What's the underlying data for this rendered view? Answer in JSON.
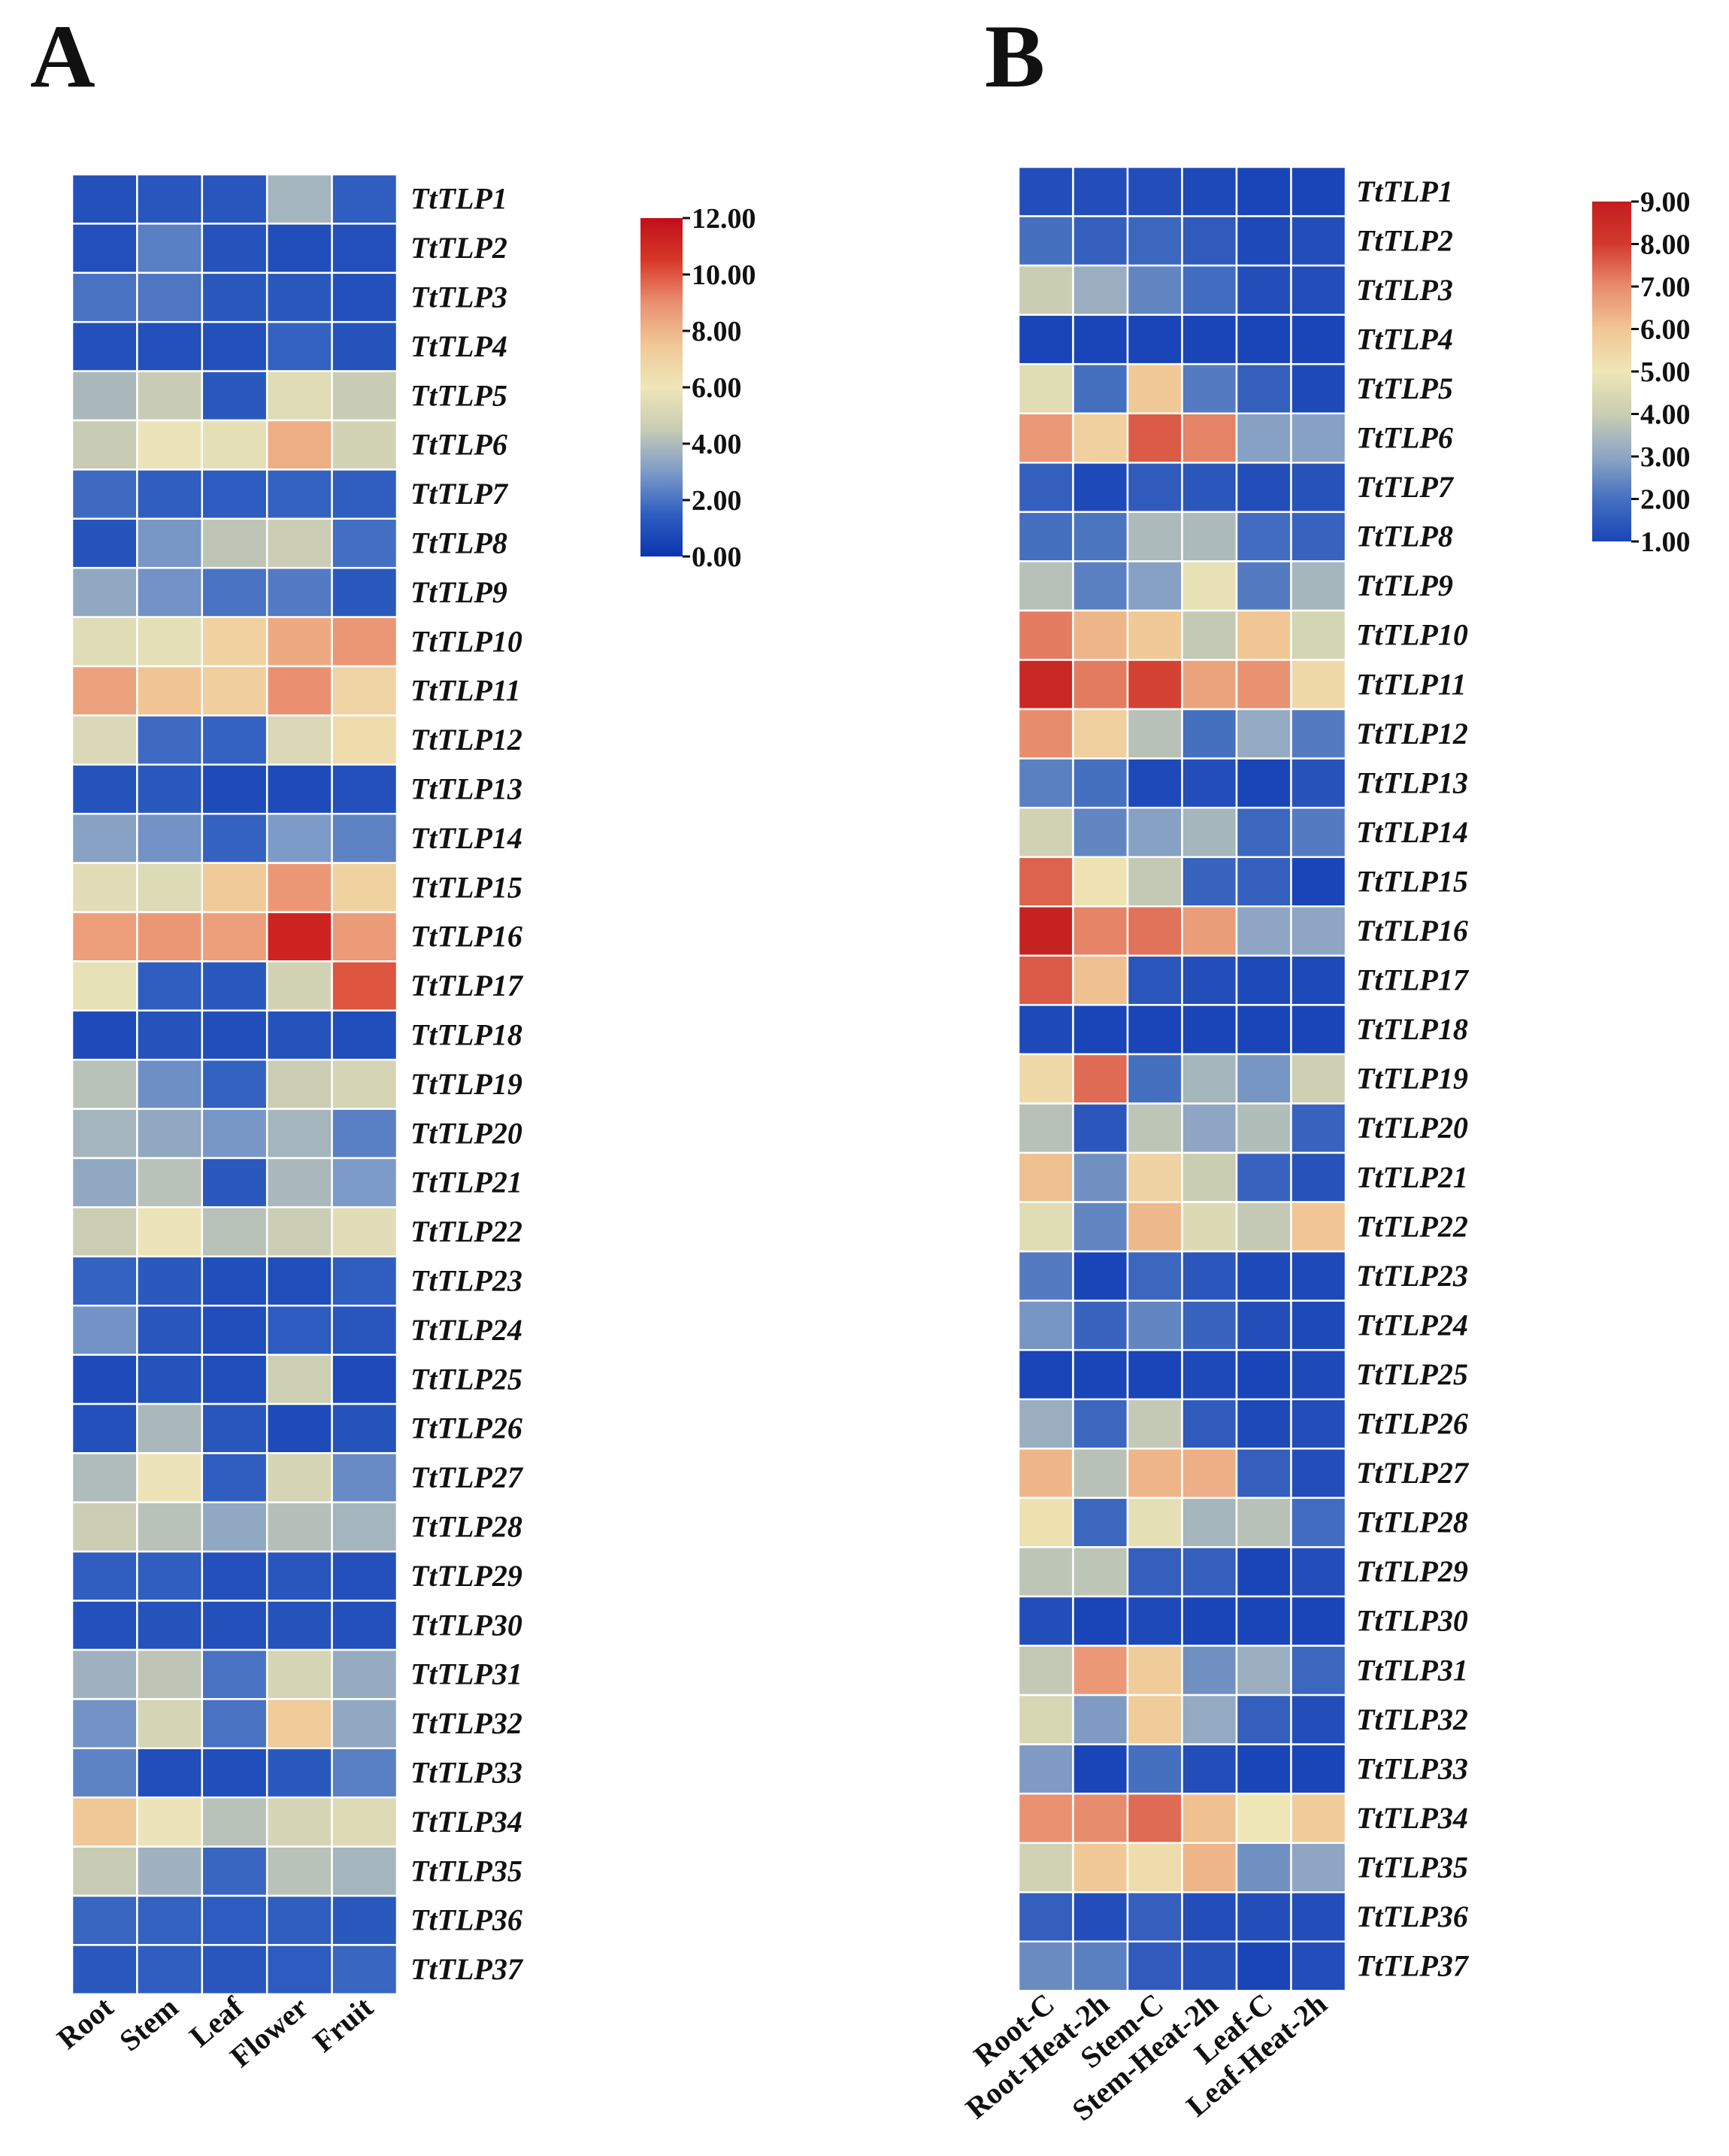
{
  "chart_data": [
    {
      "type": "heatmap",
      "panel_label": "A",
      "columns": [
        "Root",
        "Stem",
        "Leaf",
        "Flower",
        "Fruit"
      ],
      "rows": [
        "TtTLP1",
        "TtTLP2",
        "TtTLP3",
        "TtTLP4",
        "TtTLP5",
        "TtTLP6",
        "TtTLP7",
        "TtTLP8",
        "TtTLP9",
        "TtTLP10",
        "TtTLP11",
        "TtTLP12",
        "TtTLP13",
        "TtTLP14",
        "TtTLP15",
        "TtTLP16",
        "TtTLP17",
        "TtTLP18",
        "TtTLP19",
        "TtTLP20",
        "TtTLP21",
        "TtTLP22",
        "TtTLP23",
        "TtTLP24",
        "TtTLP25",
        "TtTLP26",
        "TtTLP27",
        "TtTLP28",
        "TtTLP29",
        "TtTLP30",
        "TtTLP31",
        "TtTLP32",
        "TtTLP33",
        "TtTLP34",
        "TtTLP35",
        "TtTLP36",
        "TtTLP37"
      ],
      "values": [
        [
          1.0,
          1.2,
          1.2,
          3.8,
          1.5
        ],
        [
          1.0,
          2.3,
          1.1,
          0.9,
          1.0
        ],
        [
          2.0,
          2.1,
          1.3,
          1.3,
          1.0
        ],
        [
          1.0,
          1.0,
          1.0,
          1.6,
          1.1
        ],
        [
          3.9,
          4.5,
          1.3,
          5.4,
          4.5
        ],
        [
          4.5,
          5.9,
          5.6,
          8.2,
          4.9
        ],
        [
          1.8,
          1.5,
          1.4,
          1.6,
          1.5
        ],
        [
          1.1,
          2.9,
          4.3,
          4.6,
          1.9
        ],
        [
          3.4,
          2.8,
          2.0,
          2.2,
          1.3
        ],
        [
          5.4,
          5.6,
          7.0,
          8.3,
          8.8
        ],
        [
          8.5,
          7.6,
          7.2,
          9.0,
          6.9
        ],
        [
          5.2,
          1.8,
          1.6,
          5.2,
          6.5
        ],
        [
          1.1,
          1.3,
          0.8,
          0.8,
          1.0
        ],
        [
          3.2,
          2.8,
          1.6,
          3.0,
          2.4
        ],
        [
          5.5,
          5.3,
          7.4,
          8.8,
          7.0
        ],
        [
          8.6,
          8.8,
          8.6,
          11.2,
          8.7
        ],
        [
          5.7,
          1.5,
          1.3,
          4.9,
          10.0
        ],
        [
          0.8,
          1.1,
          0.9,
          1.1,
          0.9
        ],
        [
          4.2,
          2.7,
          1.6,
          4.6,
          5.0
        ],
        [
          3.8,
          3.4,
          2.9,
          3.8,
          2.3
        ],
        [
          3.4,
          4.2,
          1.3,
          3.9,
          3.0
        ],
        [
          4.6,
          5.9,
          4.2,
          4.6,
          5.5
        ],
        [
          1.6,
          1.3,
          0.9,
          0.9,
          1.5
        ],
        [
          2.8,
          1.2,
          0.9,
          1.4,
          1.2
        ],
        [
          0.8,
          1.1,
          0.9,
          4.7,
          0.8
        ],
        [
          1.0,
          3.9,
          1.2,
          0.8,
          1.1
        ],
        [
          4.0,
          5.9,
          1.5,
          5.0,
          2.6
        ],
        [
          4.6,
          4.2,
          3.4,
          4.1,
          3.8
        ],
        [
          1.5,
          1.5,
          1.0,
          1.2,
          1.0
        ],
        [
          1.0,
          1.1,
          1.0,
          1.1,
          1.0
        ],
        [
          3.7,
          4.3,
          2.0,
          5.0,
          3.5
        ],
        [
          2.8,
          5.0,
          2.0,
          7.3,
          3.4
        ],
        [
          2.4,
          0.9,
          0.9,
          1.3,
          2.3
        ],
        [
          7.5,
          5.9,
          4.2,
          5.0,
          5.3
        ],
        [
          4.5,
          3.7,
          1.7,
          4.2,
          3.8
        ],
        [
          1.7,
          1.6,
          1.4,
          1.5,
          1.3
        ],
        [
          1.3,
          1.5,
          1.2,
          1.4,
          1.7
        ]
      ],
      "color_range": [
        0,
        12
      ],
      "colorbar_ticks": [
        "12.00",
        "10.00",
        "8.00",
        "6.00",
        "4.00",
        "2.00",
        "0.00"
      ],
      "colormap": [
        "#0a35b0",
        "#2f5ec0",
        "#7d9bc8",
        "#c8ccb4",
        "#efe6b8",
        "#f0c896",
        "#ea9070",
        "#d83828",
        "#c00e1a"
      ]
    },
    {
      "type": "heatmap",
      "panel_label": "B",
      "columns": [
        "Root-C",
        "Root-Heat-2h",
        "Stem-C",
        "Stem-Heat-2h",
        "Leaf-C",
        "Leaf-Heat-2h"
      ],
      "rows": [
        "TtTLP1",
        "TtTLP2",
        "TtTLP3",
        "TtTLP4",
        "TtTLP5",
        "TtTLP6",
        "TtTLP7",
        "TtTLP8",
        "TtTLP9",
        "TtTLP10",
        "TtTLP11",
        "TtTLP12",
        "TtTLP13",
        "TtTLP14",
        "TtTLP15",
        "TtTLP16",
        "TtTLP17",
        "TtTLP18",
        "TtTLP19",
        "TtTLP20",
        "TtTLP21",
        "TtTLP22",
        "TtTLP23",
        "TtTLP24",
        "TtTLP25",
        "TtTLP26",
        "TtTLP27",
        "TtTLP28",
        "TtTLP29",
        "TtTLP30",
        "TtTLP31",
        "TtTLP32",
        "TtTLP33",
        "TtTLP34",
        "TtTLP35",
        "TtTLP36",
        "TtTLP37"
      ],
      "values": [
        [
          1.2,
          1.2,
          1.2,
          1.1,
          1.0,
          1.0
        ],
        [
          2.0,
          1.6,
          1.8,
          1.5,
          1.1,
          1.2
        ],
        [
          4.0,
          3.2,
          2.4,
          1.9,
          1.2,
          1.2
        ],
        [
          1.0,
          1.0,
          1.0,
          1.0,
          1.0,
          1.0
        ],
        [
          4.6,
          2.0,
          5.9,
          2.2,
          1.6,
          1.1
        ],
        [
          6.8,
          5.7,
          7.6,
          7.1,
          2.9,
          2.9
        ],
        [
          1.6,
          1.1,
          1.5,
          1.4,
          1.2,
          1.3
        ],
        [
          2.0,
          2.1,
          3.5,
          3.5,
          1.9,
          1.7
        ],
        [
          3.7,
          2.3,
          2.9,
          4.8,
          2.2,
          3.4
        ],
        [
          7.2,
          6.3,
          5.9,
          3.9,
          6.0,
          4.3
        ],
        [
          8.6,
          7.2,
          7.9,
          6.6,
          6.9,
          5.4
        ],
        [
          7.0,
          5.7,
          3.7,
          2.0,
          3.1,
          2.2
        ],
        [
          2.3,
          2.0,
          1.1,
          1.2,
          1.0,
          1.3
        ],
        [
          4.2,
          2.4,
          2.9,
          3.4,
          1.8,
          2.2
        ],
        [
          7.5,
          5.1,
          3.9,
          1.7,
          1.6,
          1.0
        ],
        [
          8.8,
          7.1,
          7.3,
          6.7,
          3.0,
          3.0
        ],
        [
          7.6,
          6.1,
          1.4,
          1.2,
          1.1,
          1.1
        ],
        [
          1.1,
          1.0,
          1.0,
          1.0,
          1.0,
          1.0
        ],
        [
          5.4,
          7.4,
          2.0,
          3.4,
          2.7,
          4.1
        ],
        [
          3.7,
          1.4,
          3.8,
          3.0,
          3.6,
          1.7
        ],
        [
          6.1,
          2.6,
          5.6,
          4.0,
          1.7,
          1.3
        ],
        [
          4.6,
          2.4,
          6.2,
          4.5,
          3.9,
          6.0
        ],
        [
          2.2,
          1.0,
          1.8,
          1.4,
          1.1,
          1.1
        ],
        [
          2.7,
          1.7,
          2.4,
          1.7,
          1.2,
          1.1
        ],
        [
          1.0,
          1.0,
          1.0,
          1.1,
          1.0,
          1.1
        ],
        [
          3.2,
          1.8,
          3.9,
          1.5,
          1.1,
          1.2
        ],
        [
          6.3,
          3.7,
          6.3,
          6.4,
          1.6,
          1.2
        ],
        [
          5.2,
          1.8,
          4.7,
          3.4,
          3.7,
          1.9
        ],
        [
          3.8,
          3.8,
          1.6,
          1.6,
          1.0,
          1.2
        ],
        [
          1.2,
          1.0,
          1.1,
          1.0,
          1.0,
          1.0
        ],
        [
          3.9,
          6.8,
          5.8,
          2.6,
          3.2,
          1.8
        ],
        [
          4.4,
          2.8,
          5.8,
          3.1,
          1.6,
          1.2
        ],
        [
          2.8,
          1.0,
          2.0,
          1.2,
          1.0,
          1.0
        ],
        [
          6.9,
          7.0,
          7.4,
          6.1,
          5.0,
          5.8
        ],
        [
          4.2,
          5.9,
          5.3,
          6.3,
          2.6,
          3.0
        ],
        [
          1.6,
          1.2,
          1.6,
          1.2,
          1.2,
          1.2
        ],
        [
          2.5,
          2.3,
          1.5,
          1.3,
          1.0,
          1.2
        ]
      ],
      "color_range": [
        1,
        9
      ],
      "colorbar_ticks": [
        "9.00",
        "8.00",
        "7.00",
        "6.00",
        "5.00",
        "4.00",
        "3.00",
        "2.00",
        "1.00"
      ],
      "colormap": [
        "#1a45b8",
        "#4570c0",
        "#8ea6c4",
        "#c9cdb2",
        "#efe6b6",
        "#f0c694",
        "#e88c6e",
        "#d23a2c",
        "#c41c20"
      ]
    }
  ]
}
